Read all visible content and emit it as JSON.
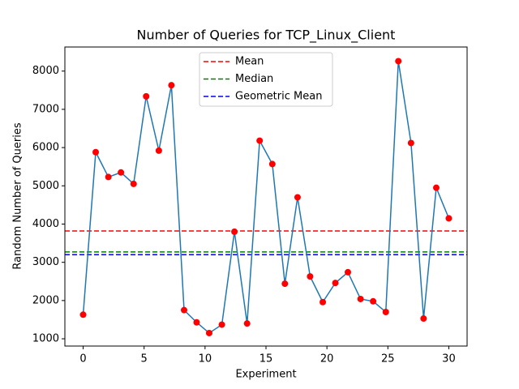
{
  "chart_data": {
    "type": "line",
    "title": "Number of Queries for TCP_Linux_Client",
    "x_label": "Experiment",
    "y_label": "Random Number of Queries",
    "x": [
      0,
      1.03,
      2.07,
      3.1,
      4.14,
      5.17,
      6.21,
      7.24,
      8.28,
      9.31,
      10.34,
      11.38,
      12.41,
      13.45,
      14.48,
      15.52,
      16.55,
      17.59,
      18.62,
      19.66,
      20.69,
      21.72,
      22.76,
      23.79,
      24.83,
      25.86,
      26.9,
      27.93,
      28.97,
      30
    ],
    "series": [
      {
        "color": "#1f77b4",
        "marker_color": "#ff0000",
        "values": [
          1630,
          5880,
          5230,
          5350,
          5050,
          7340,
          5920,
          7630,
          1750,
          1430,
          1150,
          1370,
          3800,
          1400,
          6180,
          5570,
          2440,
          4700,
          2630,
          1960,
          2460,
          2740,
          2040,
          1980,
          1700,
          8260,
          6120,
          1530,
          4950,
          4150
        ]
      }
    ],
    "hlines": [
      {
        "name": "Mean",
        "value": 3820,
        "color": "#ff0000"
      },
      {
        "name": "Median",
        "value": 3270,
        "color": "#008000"
      },
      {
        "name": "Geometric Mean",
        "value": 3200,
        "color": "#0000ff"
      }
    ],
    "xlim": [
      -1.5,
      31.5
    ],
    "ylim": [
      810,
      8630
    ],
    "xticks": [
      0,
      5,
      10,
      15,
      20,
      25,
      30
    ],
    "yticks": [
      1000,
      2000,
      3000,
      4000,
      5000,
      6000,
      7000,
      8000
    ],
    "legend": "upper center"
  }
}
